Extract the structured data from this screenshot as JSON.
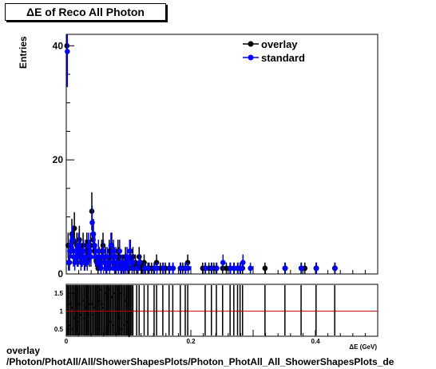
{
  "chart_data": [
    {
      "type": "scatter",
      "title": "ΔE of Reco All Photon",
      "ylabel": "Entries",
      "xlim": [
        0,
        0.5
      ],
      "ylim": [
        0,
        42
      ],
      "yticks": [
        0,
        20,
        40
      ],
      "legend": {
        "position": "top-right",
        "entries": [
          "overlay",
          "standard"
        ]
      },
      "series": [
        {
          "name": "overlay",
          "color": "#000000",
          "x": [
            0.001,
            0.003,
            0.005,
            0.007,
            0.009,
            0.011,
            0.013,
            0.015,
            0.017,
            0.019,
            0.021,
            0.023,
            0.025,
            0.027,
            0.029,
            0.031,
            0.033,
            0.035,
            0.037,
            0.039,
            0.041,
            0.043,
            0.045,
            0.047,
            0.049,
            0.051,
            0.053,
            0.055,
            0.057,
            0.059,
            0.061,
            0.063,
            0.065,
            0.067,
            0.069,
            0.071,
            0.073,
            0.075,
            0.077,
            0.079,
            0.081,
            0.083,
            0.085,
            0.087,
            0.089,
            0.091,
            0.093,
            0.095,
            0.097,
            0.099,
            0.101,
            0.103,
            0.105,
            0.107,
            0.109,
            0.111,
            0.113,
            0.115,
            0.117,
            0.119,
            0.121,
            0.123,
            0.125,
            0.127,
            0.131,
            0.133,
            0.137,
            0.141,
            0.145,
            0.151,
            0.155,
            0.159,
            0.165,
            0.171,
            0.183,
            0.187,
            0.191,
            0.195,
            0.219,
            0.223,
            0.229,
            0.233,
            0.237,
            0.241,
            0.251,
            0.257,
            0.263,
            0.269,
            0.275,
            0.279,
            0.283,
            0.319,
            0.351,
            0.377,
            0.383,
            0.401,
            0.431
          ],
          "y": [
            40,
            5,
            2,
            5,
            7,
            6,
            8,
            4,
            5,
            3,
            6,
            4,
            3,
            5,
            2,
            4,
            5,
            4,
            3,
            5,
            11,
            6,
            4,
            3,
            2,
            1,
            3,
            2,
            4,
            5,
            2,
            3,
            1,
            2,
            4,
            3,
            5,
            2,
            3,
            1,
            2,
            4,
            3,
            2,
            1,
            2,
            1,
            3,
            2,
            1,
            1,
            4,
            2,
            3,
            1,
            2,
            1,
            1,
            3,
            2,
            1,
            1,
            2,
            1,
            1,
            1,
            1,
            1,
            2,
            1,
            1,
            1,
            1,
            1,
            1,
            1,
            1,
            2,
            1,
            1,
            1,
            1,
            1,
            1,
            1,
            1,
            1,
            1,
            1,
            1,
            1,
            1,
            1,
            1,
            1,
            1,
            1
          ]
        },
        {
          "name": "standard",
          "color": "#0000ff",
          "x": [
            0.001,
            0.003,
            0.005,
            0.007,
            0.009,
            0.011,
            0.013,
            0.015,
            0.017,
            0.019,
            0.021,
            0.023,
            0.025,
            0.027,
            0.029,
            0.031,
            0.033,
            0.035,
            0.037,
            0.039,
            0.041,
            0.043,
            0.045,
            0.047,
            0.049,
            0.051,
            0.053,
            0.055,
            0.057,
            0.059,
            0.061,
            0.063,
            0.065,
            0.067,
            0.069,
            0.071,
            0.073,
            0.075,
            0.077,
            0.079,
            0.081,
            0.083,
            0.085,
            0.087,
            0.089,
            0.091,
            0.093,
            0.095,
            0.097,
            0.099,
            0.101,
            0.103,
            0.105,
            0.107,
            0.113,
            0.117,
            0.125,
            0.131,
            0.141,
            0.145,
            0.155,
            0.165,
            0.171,
            0.183,
            0.191,
            0.195,
            0.223,
            0.233,
            0.241,
            0.251,
            0.263,
            0.269,
            0.275,
            0.279,
            0.283,
            0.295,
            0.351,
            0.377,
            0.401,
            0.431
          ],
          "y": [
            39,
            2,
            4,
            5,
            6,
            3,
            2,
            4,
            3,
            5,
            4,
            2,
            3,
            4,
            2,
            3,
            2,
            5,
            4,
            3,
            9,
            7,
            5,
            3,
            2,
            4,
            2,
            1,
            3,
            4,
            2,
            1,
            3,
            2,
            1,
            5,
            2,
            4,
            1,
            3,
            2,
            1,
            4,
            1,
            2,
            1,
            2,
            1,
            3,
            2,
            4,
            2,
            1,
            2,
            1,
            2,
            1,
            1,
            1,
            1,
            1,
            1,
            1,
            1,
            1,
            1,
            1,
            1,
            1,
            2,
            1,
            1,
            1,
            1,
            2,
            1,
            1,
            1,
            1,
            1
          ]
        }
      ]
    },
    {
      "type": "scatter",
      "xlim": [
        0,
        0.5
      ],
      "ylim": [
        0.3,
        1.75
      ],
      "xticks": [
        0,
        0.2,
        0.4
      ],
      "xtick_labels": [
        "0",
        "0.2",
        "0.4"
      ],
      "yticks": [
        0.5,
        1,
        1.5
      ],
      "ytick_labels": [
        "0.5",
        "1",
        "1.5"
      ],
      "reference_line": 1,
      "reference_color": "#cc0000",
      "ratio_x": [
        0.001,
        0.003,
        0.005,
        0.007,
        0.009,
        0.011,
        0.013,
        0.015,
        0.017,
        0.019,
        0.021,
        0.023,
        0.025,
        0.027,
        0.029,
        0.031,
        0.033,
        0.035,
        0.037,
        0.039,
        0.041,
        0.043,
        0.045,
        0.047,
        0.049,
        0.051,
        0.053,
        0.055,
        0.057,
        0.059,
        0.061,
        0.063,
        0.065,
        0.067,
        0.069,
        0.071,
        0.073,
        0.075,
        0.077,
        0.079,
        0.081,
        0.083,
        0.085,
        0.087,
        0.089,
        0.091,
        0.093,
        0.095,
        0.097,
        0.099,
        0.101,
        0.103,
        0.105,
        0.107,
        0.113,
        0.117,
        0.125,
        0.131,
        0.141,
        0.145,
        0.155,
        0.165,
        0.171,
        0.183,
        0.191,
        0.195,
        0.223,
        0.233,
        0.241,
        0.251,
        0.263,
        0.269,
        0.275,
        0.279,
        0.283,
        0.319,
        0.351,
        0.377,
        0.401,
        0.431
      ],
      "ratio_y": [
        1.03,
        1.4,
        0.6,
        1.2,
        1.1,
        1.5,
        0.8,
        1.0,
        1.3,
        0.7,
        1.2,
        0.9,
        1.0,
        1.3,
        0.8,
        1.1,
        1.4,
        0.9,
        1.2,
        1.0,
        1.2,
        0.9,
        1.1,
        1.0,
        1.0,
        0.5,
        1.3,
        1.6,
        1.2,
        1.1,
        1.0,
        1.5,
        0.4,
        1.0,
        1.6,
        0.7,
        1.4,
        0.6,
        1.5,
        0.4,
        1.0,
        1.6,
        0.8,
        1.5,
        0.5,
        1.0,
        0.6,
        1.3,
        0.7,
        0.5,
        0.3,
        1.0,
        1.0,
        1.0,
        1.0,
        1.0,
        1.0,
        1.0,
        1.0,
        1.0,
        1.0,
        1.0,
        1.0,
        1.0,
        1.0,
        1.0,
        1.0,
        1.0,
        1.0,
        1.0,
        1.0,
        1.0,
        1.0,
        1.0,
        1.0,
        1.0,
        1.0,
        1.0,
        1.0,
        1.0
      ]
    }
  ],
  "texts": {
    "title": "ΔE of Reco All Photon",
    "ylabel": "Entries",
    "xlabel": "ΔE (GeV)",
    "footer_line1": "overlay",
    "footer_line2": "/Photon/PhotAll/All/ShowerShapesPlots/Photon_PhotAll_All_ShowerShapesPlots_de"
  }
}
